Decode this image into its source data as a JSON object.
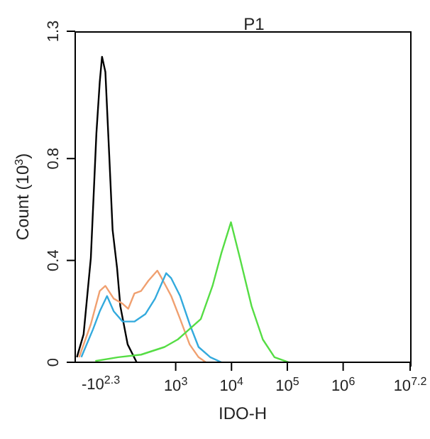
{
  "chart_data": {
    "type": "line",
    "title": "P1",
    "xlabel": "IDO-H",
    "ylabel": "Count (10$^{3}$)",
    "log": "x",
    "xlim": [
      15.85,
      15848932
    ],
    "xticks": [
      {
        "value": 1000,
        "label": "10$^{3}$"
      },
      {
        "value": 10000,
        "label": "10$^{4}$"
      },
      {
        "value": 100000,
        "label": "10$^{5}$"
      },
      {
        "value": 1000000,
        "label": "10$^{6}$"
      },
      {
        "value": 15848932,
        "label": "10$^{7.2}$"
      }
    ],
    "annotations": [
      "-10$^{2.3}$"
    ],
    "ylim": [
      0,
      1.3
    ],
    "yticks": [
      0,
      0.4,
      0.8,
      1.3
    ],
    "grid": false,
    "legend": false,
    "marker": "none",
    "line_style": "solid",
    "series": [
      {
        "color": "#000000",
        "x": [
          17,
          22.4,
          30.2,
          38,
          43.6,
          47.9,
          55,
          64.6,
          74.1,
          89.1,
          102,
          138,
          200
        ],
        "values": [
          0.02,
          0.11,
          0.41,
          0.9,
          1.1,
          1.2,
          1.14,
          0.81,
          0.52,
          0.37,
          0.22,
          0.07,
          0
        ]
      },
      {
        "color": "#f0a070",
        "x": [
          18.6,
          30.2,
          43.6,
          55,
          77.6,
          112,
          141,
          182,
          240,
          324,
          468,
          562,
          832,
          1202,
          1778,
          2570,
          3467
        ],
        "values": [
          0.02,
          0.15,
          0.28,
          0.3,
          0.25,
          0.23,
          0.21,
          0.27,
          0.28,
          0.32,
          0.36,
          0.33,
          0.26,
          0.17,
          0.07,
          0.02,
          0
        ]
      },
      {
        "color": "#33aadd",
        "x": [
          20.4,
          33.1,
          43.6,
          58.9,
          77.6,
          112,
          182,
          288,
          427,
          676,
          832,
          1202,
          1778,
          2570,
          4169,
          6607
        ],
        "values": [
          0.02,
          0.13,
          0.2,
          0.26,
          0.2,
          0.16,
          0.16,
          0.19,
          0.25,
          0.35,
          0.33,
          0.26,
          0.15,
          0.06,
          0.02,
          0
        ]
      },
      {
        "color": "#55dd44",
        "x": [
          36.3,
          93.3,
          240,
          631,
          1096,
          2818,
          4571,
          6607,
          9772,
          14125,
          22909,
          36308,
          58884,
          104713
        ],
        "values": [
          0.005,
          0.02,
          0.03,
          0.06,
          0.09,
          0.17,
          0.3,
          0.43,
          0.55,
          0.41,
          0.22,
          0.09,
          0.02,
          0
        ]
      }
    ]
  }
}
